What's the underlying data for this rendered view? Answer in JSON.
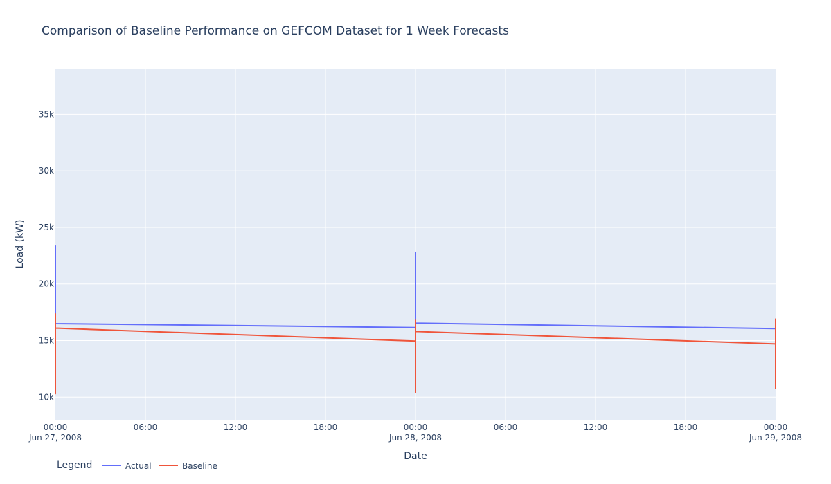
{
  "chart_data": {
    "type": "line",
    "title": "Comparison of Baseline Performance on GEFCOM Dataset for 1 Week Forecasts",
    "xlabel": "Date",
    "ylabel": "Load (kW)",
    "x_range": [
      "2008-06-27 00:00",
      "2008-06-29 00:00"
    ],
    "ylim": [
      8000,
      39000
    ],
    "y_ticks": [
      {
        "value": 10000,
        "label": "10k"
      },
      {
        "value": 15000,
        "label": "15k"
      },
      {
        "value": 20000,
        "label": "20k"
      },
      {
        "value": 25000,
        "label": "25k"
      },
      {
        "value": 30000,
        "label": "30k"
      },
      {
        "value": 35000,
        "label": "35k"
      }
    ],
    "x_ticks": [
      {
        "value": "2008-06-27 00:00",
        "label": "00:00",
        "sublabel": "Jun 27, 2008"
      },
      {
        "value": "2008-06-27 06:00",
        "label": "06:00",
        "sublabel": ""
      },
      {
        "value": "2008-06-27 12:00",
        "label": "12:00",
        "sublabel": ""
      },
      {
        "value": "2008-06-27 18:00",
        "label": "18:00",
        "sublabel": ""
      },
      {
        "value": "2008-06-28 00:00",
        "label": "00:00",
        "sublabel": "Jun 28, 2008"
      },
      {
        "value": "2008-06-28 06:00",
        "label": "06:00",
        "sublabel": ""
      },
      {
        "value": "2008-06-28 12:00",
        "label": "12:00",
        "sublabel": ""
      },
      {
        "value": "2008-06-28 18:00",
        "label": "18:00",
        "sublabel": ""
      },
      {
        "value": "2008-06-29 00:00",
        "label": "00:00",
        "sublabel": "Jun 29, 2008"
      }
    ],
    "grid": true,
    "legend": {
      "title": "Legend",
      "placement": "bottom-left",
      "orientation": "horizontal"
    },
    "series": [
      {
        "name": "Actual",
        "color": "#636efa",
        "points": [
          {
            "x": "2008-06-27 00:00",
            "y": 23400
          },
          {
            "x": "2008-06-27 00:00",
            "y": 16500
          },
          {
            "x": "2008-06-28 00:00",
            "y": 16150
          },
          {
            "x": "2008-06-28 00:00",
            "y": 22800
          },
          {
            "x": "2008-06-28 00:00",
            "y": 16550
          },
          {
            "x": "2008-06-29 00:00",
            "y": 16050
          }
        ]
      },
      {
        "name": "Baseline",
        "color": "#ef553b",
        "points": [
          {
            "x": "2008-06-27 00:00",
            "y": 17400
          },
          {
            "x": "2008-06-27 00:00",
            "y": 10300
          },
          {
            "x": "2008-06-27 00:00",
            "y": 16100
          },
          {
            "x": "2008-06-28 00:00",
            "y": 14950
          },
          {
            "x": "2008-06-28 00:00",
            "y": 10400
          },
          {
            "x": "2008-06-28 00:00",
            "y": 16800
          },
          {
            "x": "2008-06-28 00:00",
            "y": 15800
          },
          {
            "x": "2008-06-29 00:00",
            "y": 14700
          },
          {
            "x": "2008-06-29 00:00",
            "y": 16900
          },
          {
            "x": "2008-06-29 00:00",
            "y": 10700
          }
        ]
      }
    ]
  }
}
